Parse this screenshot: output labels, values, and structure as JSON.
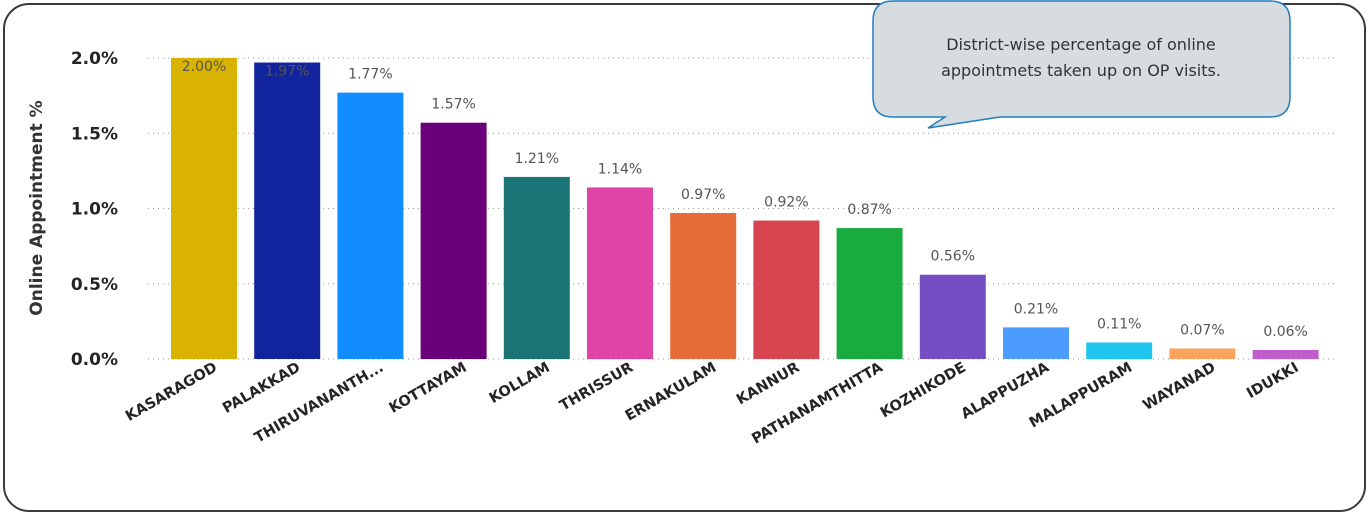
{
  "chart_data": {
    "type": "bar",
    "ylabel": "Online Appointment %",
    "xlabel": "",
    "ylim": [
      0,
      2.0
    ],
    "yticks": [
      "0.0%",
      "0.5%",
      "1.0%",
      "1.5%",
      "2.0%"
    ],
    "ytick_values": [
      0,
      0.5,
      1.0,
      1.5,
      2.0
    ],
    "grid": true,
    "categories": [
      "KASARAGOD",
      "PALAKKAD",
      "THIRUVANANTH...",
      "KOTTAYAM",
      "KOLLAM",
      "THRISSUR",
      "ERNAKULAM",
      "KANNUR",
      "PATHANAMTHITTA",
      "KOZHIKODE",
      "ALAPPUZHA",
      "MALAPPURAM",
      "WAYANAD",
      "IDUKKI"
    ],
    "values": [
      2.0,
      1.97,
      1.77,
      1.57,
      1.21,
      1.14,
      0.97,
      0.92,
      0.87,
      0.56,
      0.21,
      0.11,
      0.07,
      0.06
    ],
    "labels": [
      "2.00%",
      "1.97%",
      "1.77%",
      "1.57%",
      "1.21%",
      "1.14%",
      "0.97%",
      "0.92%",
      "0.87%",
      "0.56%",
      "0.21%",
      "0.11%",
      "0.07%",
      "0.06%"
    ],
    "colors": [
      "#D9B300",
      "#12239E",
      "#118DFF",
      "#6B007B",
      "#1A7476",
      "#E044A7",
      "#E66C37",
      "#D64550",
      "#1AAB40",
      "#744EC2",
      "#4C9BFF",
      "#1FC5EE",
      "#FCA45E",
      "#C05CCB"
    ]
  },
  "tooltip": {
    "lines": [
      "District-wise percentage of online",
      "appointmets taken up on OP visits."
    ],
    "fill": "#D6DCE0",
    "stroke": "#1F7FBF"
  }
}
